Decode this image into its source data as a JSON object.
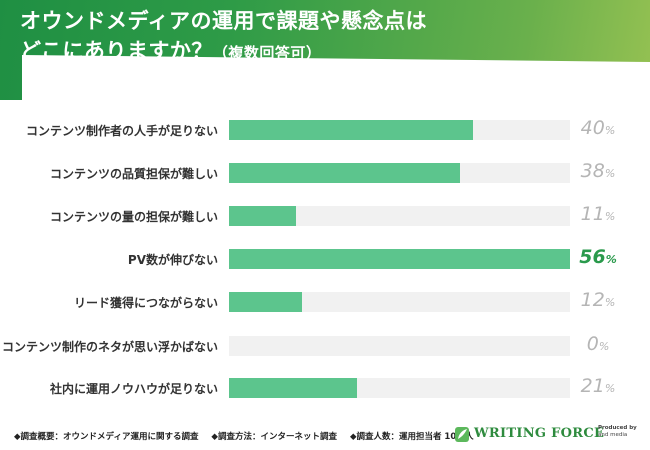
{
  "header": {
    "title_line1": "オウンドメディアの運用で課題や懸念点は",
    "title_line2": "どこにありますか？",
    "title_note": "（複数回答可）"
  },
  "chart_data": {
    "type": "bar",
    "orientation": "horizontal",
    "categories": [
      "コンテンツ制作者の人手が足りない",
      "コンテンツの品質担保が難しい",
      "コンテンツの量の担保が難しい",
      "PV数が伸びない",
      "リード獲得につながらない",
      "コンテンツ制作のネタが思い浮かばない",
      "社内に運用ノウハウが足りない"
    ],
    "values": [
      40,
      38,
      11,
      56,
      12,
      0,
      21
    ],
    "value_labels": [
      "40",
      "38",
      "11",
      "56",
      "12",
      "0",
      "21"
    ],
    "unit": "%",
    "xlim": [
      0,
      56
    ],
    "highlight_index": 3,
    "colors": {
      "bar": "#5cc58d",
      "track": "#f1f1f1",
      "value_text": "#b5b5b5",
      "highlight_text": "#2a9a4c"
    }
  },
  "footer": {
    "notes": [
      "◆調査概要：オウンドメディア運用に関する調査",
      "◆調査方法：インターネット調査",
      "◆調査人数：運用担当者 100 人"
    ],
    "logo_text": "WRITING FORCE",
    "produced_by": "Produced by",
    "produced_company": "and media"
  }
}
